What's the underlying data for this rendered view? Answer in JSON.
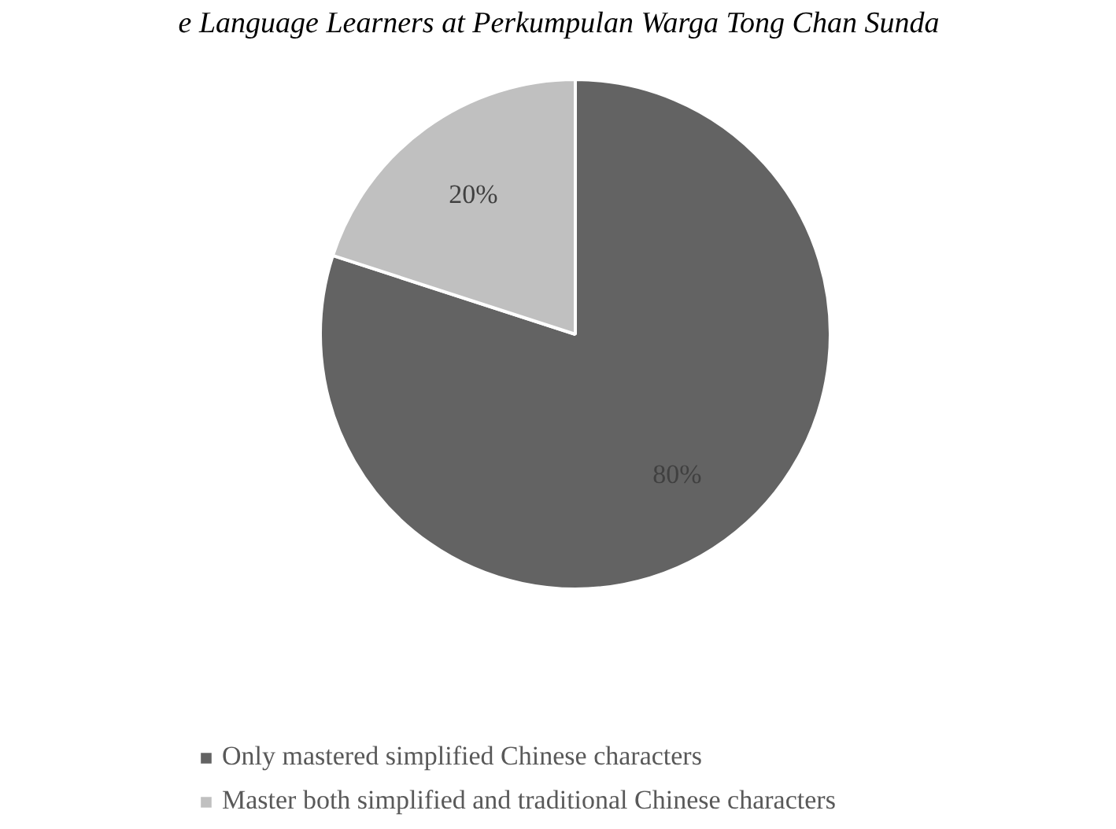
{
  "chart_data": {
    "type": "pie",
    "title": "e Language Learners at Perkumpulan Warga Tong Chan Sunda",
    "categories": [
      "Only mastered simplified Chinese characters",
      "Master both simplified and traditional Chinese characters"
    ],
    "values": [
      80,
      20
    ],
    "colors": [
      "#636363",
      "#c0c0c0"
    ],
    "value_labels": [
      "80%",
      "20%"
    ],
    "legend": "bottom"
  }
}
